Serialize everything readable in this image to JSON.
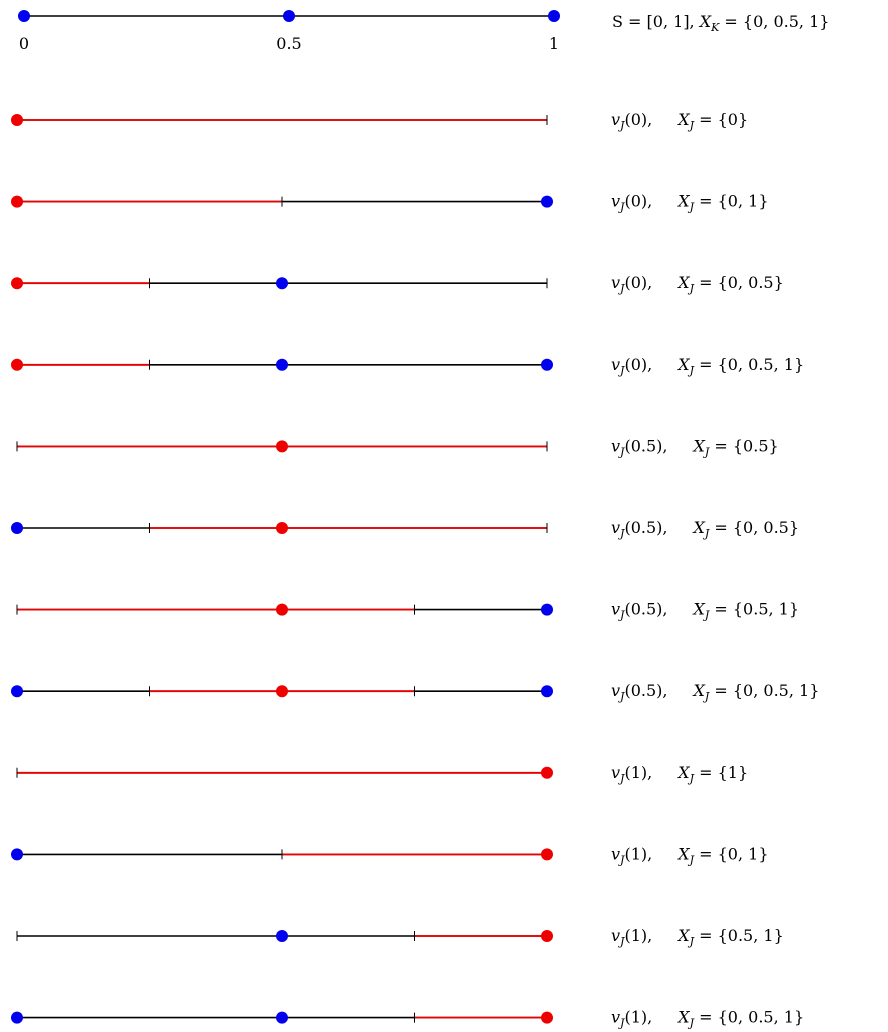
{
  "colors": {
    "line": "#000000",
    "highlight": "#ee0000",
    "point": "#0000ee",
    "selected": "#ee0000"
  },
  "header": {
    "ticks": [
      {
        "x": 0,
        "label": "0"
      },
      {
        "x": 0.5,
        "label": "0.5"
      },
      {
        "x": 1,
        "label": "1"
      }
    ],
    "points": [
      0,
      0.5,
      1
    ],
    "caption_S": "S = [0, 1],",
    "caption_XK": "X",
    "caption_XK_sub": "K",
    "caption_XK_rest": " = {0, 0.5, 1}"
  },
  "rows": [
    {
      "v_arg": "0",
      "set": "{0}",
      "points": [
        0
      ],
      "selected": 0,
      "red": [
        0,
        1
      ]
    },
    {
      "v_arg": "0",
      "set": "{0, 1}",
      "points": [
        0,
        1
      ],
      "selected": 0,
      "red": [
        0,
        0.5
      ]
    },
    {
      "v_arg": "0",
      "set": "{0, 0.5}",
      "points": [
        0,
        0.5
      ],
      "selected": 0,
      "red": [
        0,
        0.25
      ]
    },
    {
      "v_arg": "0",
      "set": "{0, 0.5, 1}",
      "points": [
        0,
        0.5,
        1
      ],
      "selected": 0,
      "red": [
        0,
        0.25
      ]
    },
    {
      "v_arg": "0.5",
      "set": "{0.5}",
      "points": [
        0.5
      ],
      "selected": 0.5,
      "red": [
        0,
        1
      ]
    },
    {
      "v_arg": "0.5",
      "set": "{0, 0.5}",
      "points": [
        0,
        0.5
      ],
      "selected": 0.5,
      "red": [
        0.25,
        1
      ]
    },
    {
      "v_arg": "0.5",
      "set": "{0.5, 1}",
      "points": [
        0.5,
        1
      ],
      "selected": 0.5,
      "red": [
        0,
        0.75
      ]
    },
    {
      "v_arg": "0.5",
      "set": "{0, 0.5, 1}",
      "points": [
        0,
        0.5,
        1
      ],
      "selected": 0.5,
      "red": [
        0.25,
        0.75
      ]
    },
    {
      "v_arg": "1",
      "set": "{1}",
      "points": [
        1
      ],
      "selected": 1,
      "red": [
        0,
        1
      ]
    },
    {
      "v_arg": "1",
      "set": "{0, 1}",
      "points": [
        0,
        1
      ],
      "selected": 1,
      "red": [
        0.5,
        1
      ]
    },
    {
      "v_arg": "1",
      "set": "{0.5, 1}",
      "points": [
        0.5,
        1
      ],
      "selected": 1,
      "red": [
        0.75,
        1
      ]
    },
    {
      "v_arg": "1",
      "set": "{0, 0.5, 1}",
      "points": [
        0,
        0.5,
        1
      ],
      "selected": 1,
      "red": [
        0.75,
        1
      ]
    }
  ],
  "label_v": "v",
  "label_J": "J",
  "label_X": "X"
}
